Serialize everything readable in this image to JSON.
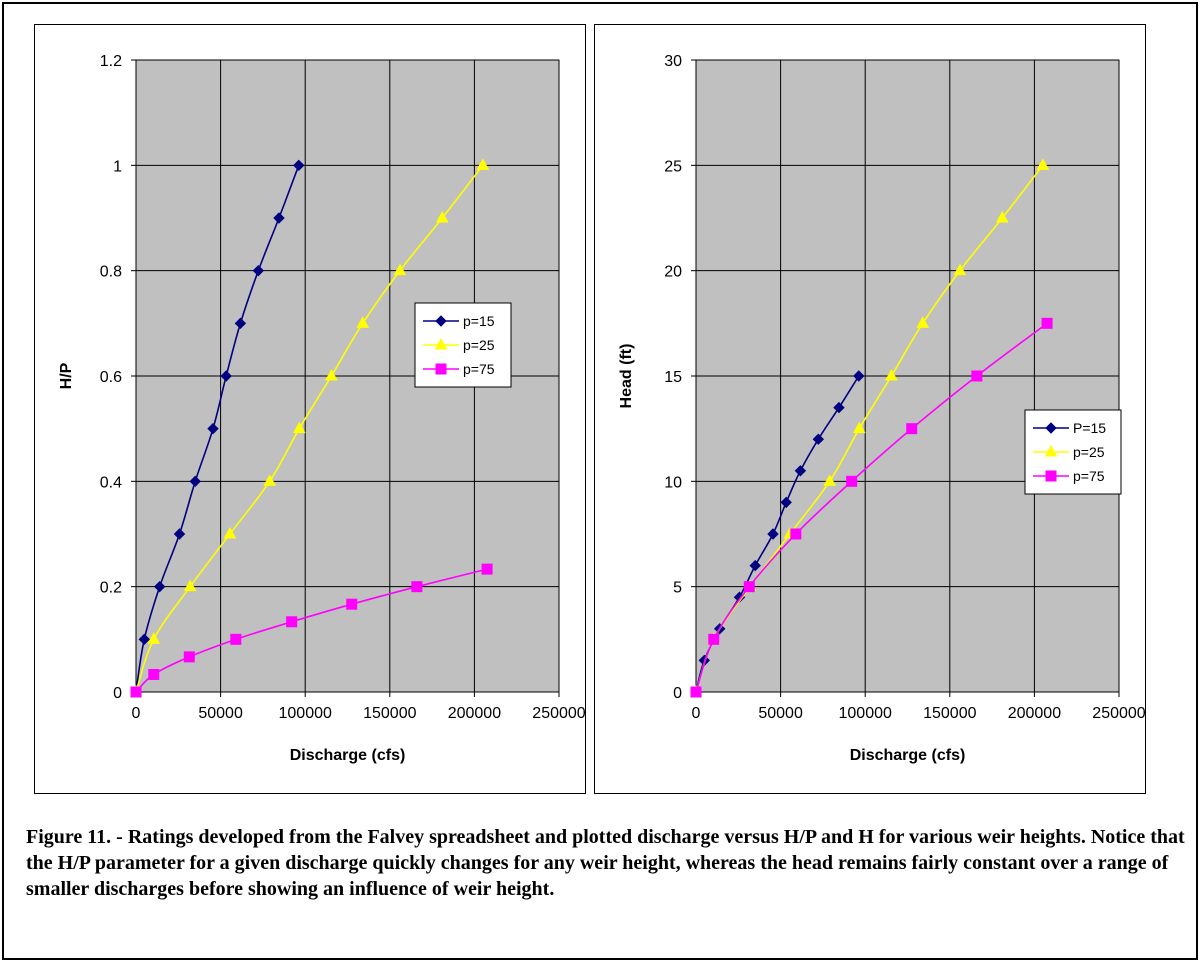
{
  "colors": {
    "p15": "#000080",
    "p25": "#FFFF00",
    "p75": "#FF00FF",
    "plot_bg": "#C0C0C0",
    "grid": "#000000"
  },
  "chart_data": [
    {
      "type": "line",
      "title": "",
      "xlabel": "Discharge (cfs)",
      "ylabel": "H/P",
      "xlim": [
        0,
        250000
      ],
      "ylim": [
        0,
        1.2
      ],
      "x_ticks": [
        "0",
        "50000",
        "100000",
        "150000",
        "200000",
        "250000"
      ],
      "y_ticks": [
        "0",
        "0.2",
        "0.4",
        "0.6",
        "0.8",
        "1",
        "1.2"
      ],
      "legend": "right",
      "grid": true,
      "series": [
        {
          "name": "p=15",
          "marker": "diamond",
          "color": "#000080",
          "x": [
            0,
            4900,
            14000,
            25700,
            35000,
            45500,
            53300,
            61700,
            72300,
            84500,
            96200
          ],
          "y": [
            0,
            0.1,
            0.2,
            0.3,
            0.4,
            0.5,
            0.6,
            0.7,
            0.8,
            0.9,
            1.0
          ]
        },
        {
          "name": "p=25",
          "marker": "triangle",
          "color": "#FFFF00",
          "x": [
            0,
            10500,
            32000,
            55500,
            79000,
            96500,
            115500,
            134000,
            156000,
            181000,
            205000
          ],
          "y": [
            0,
            0.1,
            0.2,
            0.3,
            0.4,
            0.5,
            0.6,
            0.7,
            0.8,
            0.9,
            1.0
          ]
        },
        {
          "name": "p=75",
          "marker": "square",
          "color": "#FF00FF",
          "x": [
            0,
            10500,
            31500,
            59000,
            92000,
            127500,
            166000,
            207500
          ],
          "y": [
            0,
            0.0333,
            0.0667,
            0.1,
            0.1333,
            0.1667,
            0.2,
            0.2333
          ]
        }
      ]
    },
    {
      "type": "line",
      "title": "",
      "xlabel": "Discharge (cfs)",
      "ylabel": "Head (ft)",
      "xlim": [
        0,
        250000
      ],
      "ylim": [
        0,
        30
      ],
      "x_ticks": [
        "0",
        "50000",
        "100000",
        "150000",
        "200000",
        "250000"
      ],
      "y_ticks": [
        "0",
        "5",
        "10",
        "15",
        "20",
        "25",
        "30"
      ],
      "legend": "right",
      "grid": true,
      "series": [
        {
          "name": "P=15",
          "marker": "diamond",
          "color": "#000080",
          "x": [
            0,
            4900,
            14000,
            25700,
            35000,
            45500,
            53300,
            61700,
            72300,
            84500,
            96200
          ],
          "y": [
            0,
            1.5,
            3,
            4.5,
            6,
            7.5,
            9,
            10.5,
            12,
            13.5,
            15
          ]
        },
        {
          "name": "p=25",
          "marker": "triangle",
          "color": "#FFFF00",
          "x": [
            0,
            10500,
            32000,
            55500,
            79000,
            96500,
            115500,
            134000,
            156000,
            181000,
            205000
          ],
          "y": [
            0,
            2.5,
            5,
            7.5,
            10,
            12.5,
            15,
            17.5,
            20,
            22.5,
            25
          ]
        },
        {
          "name": "p=75",
          "marker": "square",
          "color": "#FF00FF",
          "x": [
            0,
            10500,
            31500,
            59000,
            92000,
            127500,
            166000,
            207500
          ],
          "y": [
            0,
            2.5,
            5,
            7.5,
            10,
            12.5,
            15,
            17.5
          ]
        }
      ]
    }
  ],
  "caption": "Figure 11. -  Ratings developed from the Falvey spreadsheet and plotted discharge versus H/P and H for various weir heights.  Notice that the H/P parameter for a given discharge quickly changes for any weir height, whereas the head remains fairly constant over a range of smaller discharges before showing an influence of weir height."
}
